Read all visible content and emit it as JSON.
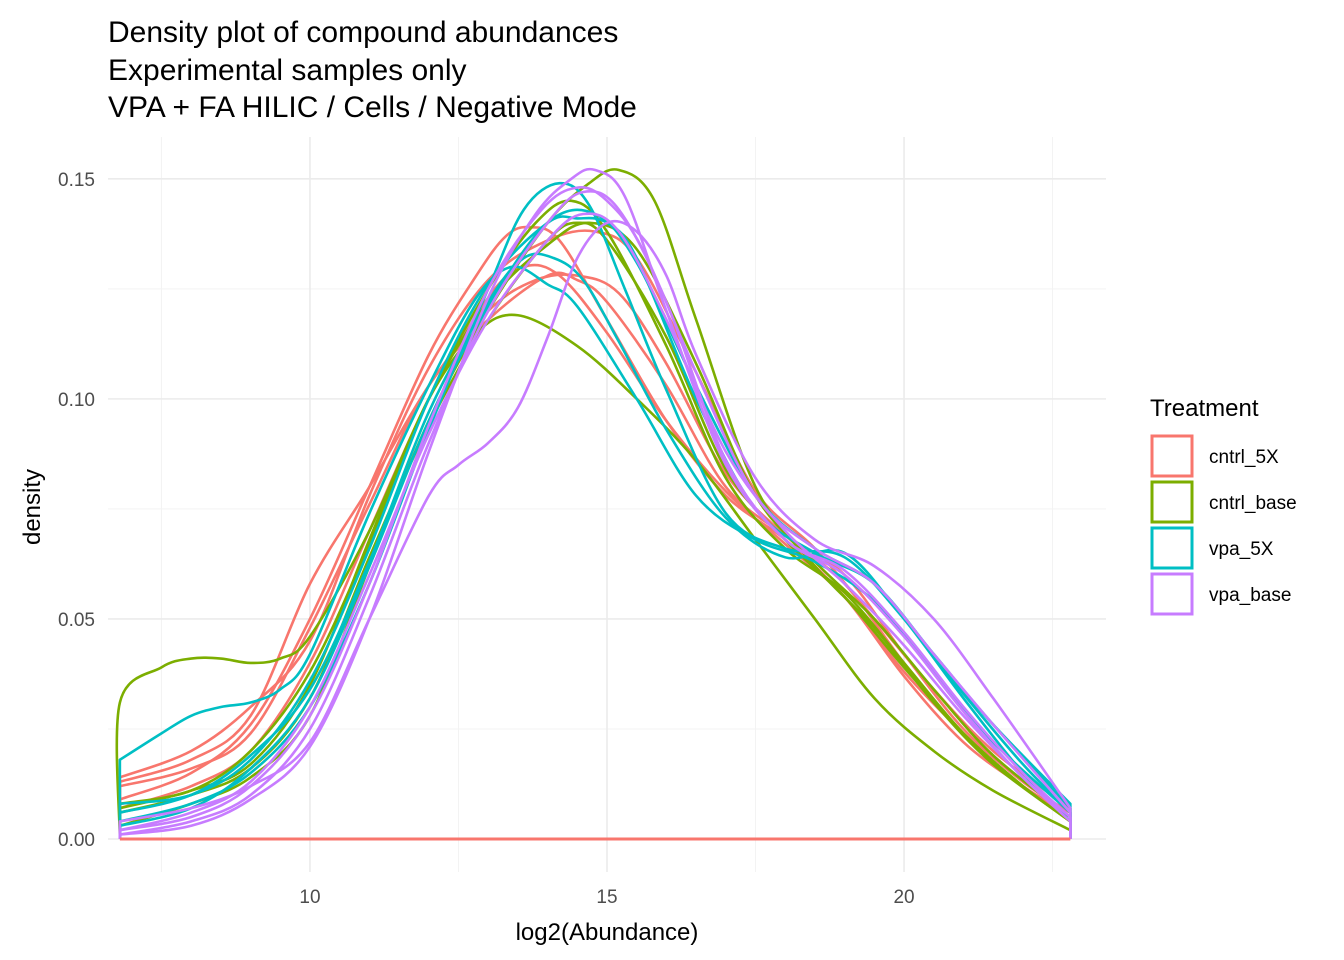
{
  "chart_data": {
    "type": "line",
    "title": "Density plot of compound abundances",
    "subtitle_lines": [
      "Experimental samples only",
      "VPA + FA HILIC / Cells / Negative Mode"
    ],
    "xlabel": "log2(Abundance)",
    "ylabel": "density",
    "xlim": [
      6.6,
      23.4
    ],
    "ylim": [
      -0.0075,
      0.1595
    ],
    "x_ticks": [
      10,
      15,
      20
    ],
    "x_tick_labels": [
      "10",
      "15",
      "20"
    ],
    "y_ticks": [
      0.0,
      0.05,
      0.1,
      0.15
    ],
    "y_tick_labels": [
      "0.00",
      "0.05",
      "0.10",
      "0.15"
    ],
    "grid": true,
    "legend": {
      "title": "Treatment",
      "position": "right",
      "entries": [
        {
          "label": "cntrl_5X",
          "color": "#F8766D"
        },
        {
          "label": "cntrl_base",
          "color": "#7CAE00"
        },
        {
          "label": "vpa_5X",
          "color": "#00BFC4"
        },
        {
          "label": "vpa_base",
          "color": "#C77CFF"
        }
      ]
    },
    "series": [
      {
        "group": "cntrl_5X",
        "x": [
          6.8,
          8,
          9,
          10,
          11,
          12,
          12.8,
          13.3,
          13.7,
          14.2,
          15,
          16,
          17,
          18,
          19,
          20,
          21,
          22,
          22.8
        ],
        "y": [
          0.009,
          0.015,
          0.026,
          0.05,
          0.08,
          0.11,
          0.128,
          0.137,
          0.139,
          0.136,
          0.118,
          0.095,
          0.078,
          0.068,
          0.055,
          0.037,
          0.022,
          0.012,
          0.005
        ]
      },
      {
        "group": "cntrl_5X",
        "x": [
          6.8,
          8,
          9,
          10,
          11,
          12,
          13,
          13.8,
          14.5,
          15.2,
          16,
          17,
          18,
          19,
          20,
          21,
          22,
          22.8
        ],
        "y": [
          0.013,
          0.018,
          0.028,
          0.058,
          0.08,
          0.103,
          0.12,
          0.127,
          0.128,
          0.124,
          0.108,
          0.083,
          0.069,
          0.058,
          0.04,
          0.024,
          0.012,
          0.004
        ]
      },
      {
        "group": "cntrl_5X",
        "x": [
          6.8,
          8,
          9,
          10,
          11,
          12,
          13,
          14,
          14.8,
          15.5,
          16.5,
          17.5,
          18.5,
          19.5,
          20.5,
          21.5,
          22.8
        ],
        "y": [
          0.014,
          0.02,
          0.03,
          0.045,
          0.078,
          0.107,
          0.127,
          0.136,
          0.138,
          0.132,
          0.106,
          0.079,
          0.066,
          0.05,
          0.034,
          0.02,
          0.007
        ]
      },
      {
        "group": "cntrl_5X",
        "x": [
          6.8,
          8,
          9,
          10,
          11,
          12,
          13,
          13.6,
          14.2,
          15,
          16,
          17,
          18,
          19,
          20,
          21,
          22,
          22.8
        ],
        "y": [
          0.007,
          0.012,
          0.02,
          0.04,
          0.07,
          0.1,
          0.123,
          0.13,
          0.128,
          0.115,
          0.095,
          0.079,
          0.067,
          0.055,
          0.038,
          0.024,
          0.012,
          0.006
        ]
      },
      {
        "group": "cntrl_5X",
        "x": [
          6.8,
          8,
          9,
          10,
          11,
          12,
          13,
          14,
          14.5,
          15,
          16,
          17,
          18,
          19,
          20,
          21,
          22,
          22.8
        ],
        "y": [
          0.012,
          0.016,
          0.024,
          0.048,
          0.076,
          0.103,
          0.118,
          0.128,
          0.127,
          0.122,
          0.103,
          0.08,
          0.069,
          0.06,
          0.042,
          0.025,
          0.013,
          0.006
        ]
      },
      {
        "group": "cntrl_base",
        "x": [
          6.8,
          6.8,
          7.5,
          8,
          8.5,
          9,
          9.5,
          10,
          11,
          12,
          12.8,
          13.5,
          14.5,
          15.5,
          16.5,
          17.5,
          18.5,
          19.5,
          20.5,
          21.5,
          22.8
        ],
        "y": [
          0.0,
          0.031,
          0.039,
          0.041,
          0.041,
          0.04,
          0.041,
          0.046,
          0.07,
          0.1,
          0.115,
          0.119,
          0.112,
          0.1,
          0.086,
          0.068,
          0.05,
          0.032,
          0.02,
          0.011,
          0.002
        ]
      },
      {
        "group": "cntrl_base",
        "x": [
          6.8,
          8,
          9,
          10,
          11,
          12,
          13,
          14,
          14.7,
          15.2,
          15.8,
          16.5,
          17.5,
          18.5,
          19.5,
          20.5,
          21.5,
          22.8
        ],
        "y": [
          0.003,
          0.008,
          0.014,
          0.028,
          0.062,
          0.095,
          0.12,
          0.14,
          0.149,
          0.152,
          0.145,
          0.118,
          0.08,
          0.062,
          0.048,
          0.031,
          0.017,
          0.004
        ]
      },
      {
        "group": "cntrl_base",
        "x": [
          6.8,
          8,
          9,
          10,
          11,
          12,
          13,
          13.8,
          14.4,
          15,
          16,
          17,
          18,
          19,
          20,
          21,
          22,
          22.8
        ],
        "y": [
          0.007,
          0.011,
          0.017,
          0.035,
          0.068,
          0.1,
          0.125,
          0.14,
          0.145,
          0.138,
          0.112,
          0.082,
          0.066,
          0.056,
          0.04,
          0.024,
          0.012,
          0.004
        ]
      },
      {
        "group": "cntrl_base",
        "x": [
          6.8,
          8,
          9,
          10,
          11,
          12,
          13,
          14,
          14.7,
          15.5,
          16.5,
          17.5,
          18.5,
          19.5,
          20.5,
          21.5,
          22.8
        ],
        "y": [
          0.008,
          0.011,
          0.02,
          0.038,
          0.067,
          0.1,
          0.122,
          0.135,
          0.14,
          0.134,
          0.108,
          0.078,
          0.063,
          0.05,
          0.034,
          0.019,
          0.005
        ]
      },
      {
        "group": "cntrl_base",
        "x": [
          6.8,
          8,
          9,
          10,
          11,
          12,
          13,
          14,
          14.5,
          15,
          16,
          17,
          18,
          19,
          20,
          21,
          22,
          22.8
        ],
        "y": [
          0.006,
          0.01,
          0.016,
          0.032,
          0.064,
          0.094,
          0.118,
          0.136,
          0.14,
          0.136,
          0.114,
          0.084,
          0.068,
          0.055,
          0.039,
          0.024,
          0.012,
          0.004
        ]
      },
      {
        "group": "vpa_5X",
        "x": [
          6.8,
          7.5,
          8,
          8.5,
          9,
          9.5,
          10,
          11,
          12,
          12.8,
          13.4,
          14,
          14.5,
          15.5,
          16.5,
          17.5,
          18.5,
          19.5,
          20.5,
          21.5,
          22.8
        ],
        "y": [
          0.018,
          0.024,
          0.028,
          0.03,
          0.031,
          0.034,
          0.042,
          0.074,
          0.103,
          0.123,
          0.13,
          0.126,
          0.121,
          0.1,
          0.078,
          0.068,
          0.063,
          0.054,
          0.038,
          0.022,
          0.006
        ]
      },
      {
        "group": "vpa_5X",
        "x": [
          6.8,
          8,
          9,
          10,
          11,
          12,
          13,
          13.6,
          14.2,
          14.7,
          15.3,
          16,
          17,
          18,
          19,
          20,
          21,
          22,
          22.8
        ],
        "y": [
          0.004,
          0.008,
          0.015,
          0.03,
          0.058,
          0.093,
          0.125,
          0.143,
          0.149,
          0.144,
          0.125,
          0.102,
          0.074,
          0.066,
          0.064,
          0.05,
          0.033,
          0.017,
          0.006
        ]
      },
      {
        "group": "vpa_5X",
        "x": [
          6.8,
          8,
          9,
          10,
          11,
          12,
          13,
          14,
          14.5,
          15,
          15.5,
          16.5,
          17.5,
          18.5,
          19.5,
          20.5,
          21.5,
          22.8
        ],
        "y": [
          0.008,
          0.01,
          0.018,
          0.036,
          0.066,
          0.1,
          0.126,
          0.14,
          0.141,
          0.14,
          0.132,
          0.1,
          0.075,
          0.065,
          0.058,
          0.042,
          0.026,
          0.007
        ]
      },
      {
        "group": "vpa_5X",
        "x": [
          6.8,
          8,
          9,
          10,
          11,
          12,
          13,
          13.6,
          14.1,
          14.6,
          15.2,
          16,
          17,
          18,
          19,
          20,
          21,
          22,
          22.8
        ],
        "y": [
          0.006,
          0.01,
          0.019,
          0.034,
          0.063,
          0.097,
          0.122,
          0.132,
          0.132,
          0.127,
          0.113,
          0.093,
          0.073,
          0.064,
          0.065,
          0.05,
          0.032,
          0.015,
          0.004
        ]
      },
      {
        "group": "vpa_5X",
        "x": [
          6.8,
          8,
          9,
          10,
          11,
          12,
          13,
          14,
          14.8,
          15.5,
          16.5,
          17.5,
          18.5,
          19.5,
          20.5,
          21.5,
          22.8
        ],
        "y": [
          0.003,
          0.007,
          0.016,
          0.032,
          0.062,
          0.095,
          0.121,
          0.14,
          0.142,
          0.131,
          0.103,
          0.078,
          0.066,
          0.058,
          0.042,
          0.026,
          0.008
        ]
      },
      {
        "group": "vpa_base",
        "x": [
          6.8,
          8,
          9,
          10,
          11,
          12,
          12.5,
          13,
          13.5,
          14,
          14.5,
          15,
          15.5,
          16,
          16.5,
          17.5,
          18.5,
          19.5,
          20.5,
          21.5,
          22.8
        ],
        "y": [
          0.004,
          0.007,
          0.012,
          0.022,
          0.05,
          0.078,
          0.085,
          0.09,
          0.098,
          0.114,
          0.132,
          0.14,
          0.138,
          0.128,
          0.11,
          0.082,
          0.068,
          0.062,
          0.05,
          0.032,
          0.007
        ]
      },
      {
        "group": "vpa_base",
        "x": [
          6.8,
          8,
          9,
          10,
          11,
          12,
          13,
          13.8,
          14.4,
          14.8,
          15.3,
          16,
          17,
          18,
          19,
          20,
          21,
          22,
          22.8
        ],
        "y": [
          0.001,
          0.003,
          0.009,
          0.021,
          0.05,
          0.088,
          0.123,
          0.142,
          0.15,
          0.152,
          0.146,
          0.12,
          0.085,
          0.068,
          0.06,
          0.046,
          0.029,
          0.014,
          0.005
        ]
      },
      {
        "group": "vpa_base",
        "x": [
          6.8,
          8,
          9,
          10,
          11,
          12,
          13,
          13.9,
          14.5,
          15,
          15.6,
          16.5,
          17.5,
          18.5,
          19.5,
          20.5,
          21.5,
          22.8
        ],
        "y": [
          0.002,
          0.005,
          0.012,
          0.028,
          0.058,
          0.094,
          0.125,
          0.143,
          0.148,
          0.145,
          0.134,
          0.106,
          0.078,
          0.066,
          0.058,
          0.042,
          0.026,
          0.006
        ]
      },
      {
        "group": "vpa_base",
        "x": [
          6.8,
          8,
          9,
          10,
          11,
          12,
          13,
          14,
          14.6,
          15.2,
          16,
          17,
          18,
          19,
          20,
          21,
          22,
          22.8
        ],
        "y": [
          0.001,
          0.004,
          0.01,
          0.025,
          0.055,
          0.09,
          0.12,
          0.14,
          0.147,
          0.143,
          0.122,
          0.086,
          0.068,
          0.061,
          0.047,
          0.03,
          0.015,
          0.005
        ]
      },
      {
        "group": "vpa_base",
        "x": [
          6.8,
          8,
          9,
          10,
          11,
          12,
          13,
          14,
          14.6,
          15.2,
          16,
          17,
          18,
          19,
          20,
          21,
          22,
          22.8
        ],
        "y": [
          0.002,
          0.006,
          0.013,
          0.03,
          0.06,
          0.092,
          0.118,
          0.136,
          0.142,
          0.138,
          0.118,
          0.088,
          0.07,
          0.058,
          0.044,
          0.028,
          0.014,
          0.004
        ]
      }
    ],
    "baseline": {
      "x": [
        6.8,
        22.8
      ],
      "y": [
        0.0,
        0.0
      ],
      "color": "#F8766D"
    }
  }
}
